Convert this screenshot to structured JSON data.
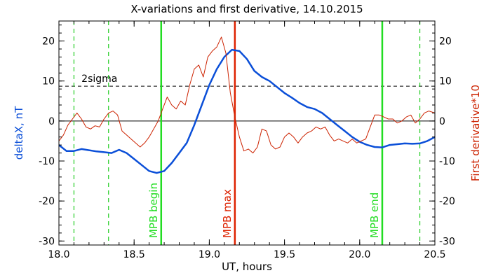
{
  "chart_data": {
    "type": "line",
    "title": "X-variations and first derivative, 14.10.2015",
    "xlabel": "UT, hours",
    "ylabel_left": "deltaX, nT",
    "ylabel_right": "First derivative*10",
    "xlim": [
      18.0,
      20.5
    ],
    "ylim": [
      -31,
      25
    ],
    "x_ticks": [
      "18.0",
      "18.5",
      "19.0",
      "19.5",
      "20.0",
      "20.5"
    ],
    "x_tick_values": [
      18.0,
      18.5,
      19.0,
      19.5,
      20.0,
      20.5
    ],
    "y_ticks": [
      "20",
      "10",
      "0",
      "-10",
      "-20",
      "-30"
    ],
    "y_tick_values": [
      20,
      10,
      0,
      -10,
      -20,
      -30
    ],
    "grid": false,
    "colors": {
      "deltaX": "#0b4fd8",
      "derivative": "#cc2200",
      "mpb_begin": "#22dd22",
      "mpb_max": "#dd2200",
      "dashed_green": "#22cc22",
      "axis": "#000000"
    },
    "sigma_line": {
      "label": "2sigma",
      "value": 8.7
    },
    "zero_line": 0,
    "vertical_lines": [
      {
        "label": "MPB begin",
        "x": 18.68,
        "style": "solid",
        "color": "#22dd22"
      },
      {
        "label": "MPB max",
        "x": 19.17,
        "style": "solid",
        "color": "#dd2200"
      },
      {
        "label": "MPB end",
        "x": 20.15,
        "style": "solid",
        "color": "#22dd22"
      },
      {
        "label": "",
        "x": 18.1,
        "style": "dashed",
        "color": "#22cc22"
      },
      {
        "label": "",
        "x": 18.33,
        "style": "dashed",
        "color": "#22cc22"
      },
      {
        "label": "",
        "x": 20.4,
        "style": "dashed",
        "color": "#22cc22"
      }
    ],
    "series": [
      {
        "key": "deltaX",
        "x": [
          18.0,
          18.05,
          18.1,
          18.15,
          18.2,
          18.25,
          18.3,
          18.35,
          18.4,
          18.45,
          18.5,
          18.55,
          18.6,
          18.65,
          18.7,
          18.75,
          18.8,
          18.85,
          18.9,
          18.95,
          19.0,
          19.05,
          19.1,
          19.15,
          19.2,
          19.25,
          19.3,
          19.35,
          19.4,
          19.45,
          19.5,
          19.55,
          19.6,
          19.65,
          19.7,
          19.75,
          19.8,
          19.85,
          19.9,
          19.95,
          20.0,
          20.05,
          20.1,
          20.15,
          20.2,
          20.25,
          20.3,
          20.35,
          20.4,
          20.45,
          20.5
        ],
        "values": [
          -6,
          -7.5,
          -7.5,
          -7,
          -7.3,
          -7.6,
          -7.8,
          -8,
          -7.2,
          -8,
          -9.5,
          -11,
          -12.5,
          -13,
          -12.5,
          -10.5,
          -8,
          -5.5,
          -1,
          4,
          9,
          13,
          16,
          17.8,
          17.5,
          15.5,
          12.5,
          11,
          10,
          8.5,
          7,
          5.8,
          4.5,
          3.5,
          3,
          2,
          0.5,
          -1,
          -2.5,
          -4,
          -5.2,
          -6,
          -6.5,
          -6.6,
          -6,
          -5.8,
          -5.6,
          -5.7,
          -5.6,
          -5,
          -4
        ]
      },
      {
        "key": "derivative",
        "x": [
          18.0,
          18.03,
          18.06,
          18.09,
          18.12,
          18.15,
          18.18,
          18.21,
          18.24,
          18.27,
          18.3,
          18.33,
          18.36,
          18.39,
          18.42,
          18.45,
          18.48,
          18.51,
          18.54,
          18.57,
          18.6,
          18.63,
          18.66,
          18.69,
          18.72,
          18.75,
          18.78,
          18.81,
          18.84,
          18.87,
          18.9,
          18.93,
          18.96,
          18.99,
          19.02,
          19.05,
          19.08,
          19.11,
          19.14,
          19.17,
          19.2,
          19.23,
          19.26,
          19.29,
          19.32,
          19.35,
          19.38,
          19.41,
          19.44,
          19.47,
          19.5,
          19.53,
          19.56,
          19.59,
          19.62,
          19.65,
          19.68,
          19.71,
          19.74,
          19.77,
          19.8,
          19.83,
          19.86,
          19.89,
          19.92,
          19.95,
          19.98,
          20.01,
          20.04,
          20.07,
          20.1,
          20.13,
          20.16,
          20.19,
          20.22,
          20.25,
          20.28,
          20.31,
          20.34,
          20.37,
          20.4,
          20.43,
          20.46,
          20.5
        ],
        "values": [
          -5,
          -3.5,
          -1,
          0.5,
          2,
          0.5,
          -1.5,
          -2,
          -1.2,
          -1.5,
          0.5,
          2,
          2.5,
          1.5,
          -2.5,
          -3.5,
          -4.5,
          -5.5,
          -6.5,
          -5.5,
          -4,
          -2,
          0,
          3,
          6,
          4,
          3,
          5,
          4,
          9,
          13,
          14,
          11,
          16,
          17.5,
          18.5,
          21,
          17,
          7,
          1,
          -4,
          -7.5,
          -7,
          -8,
          -6.5,
          -2,
          -2.5,
          -6,
          -7,
          -6.5,
          -4,
          -3,
          -4,
          -5.5,
          -4,
          -3,
          -2.5,
          -1.5,
          -2,
          -1.5,
          -3.5,
          -5,
          -4.5,
          -5,
          -5.5,
          -4.5,
          -5.5,
          -5,
          -4.5,
          -1.5,
          1.5,
          1.5,
          1,
          0.5,
          0.5,
          -0.5,
          0,
          1,
          1.5,
          -0.5,
          0.5,
          2,
          2.5,
          2
        ]
      }
    ]
  }
}
